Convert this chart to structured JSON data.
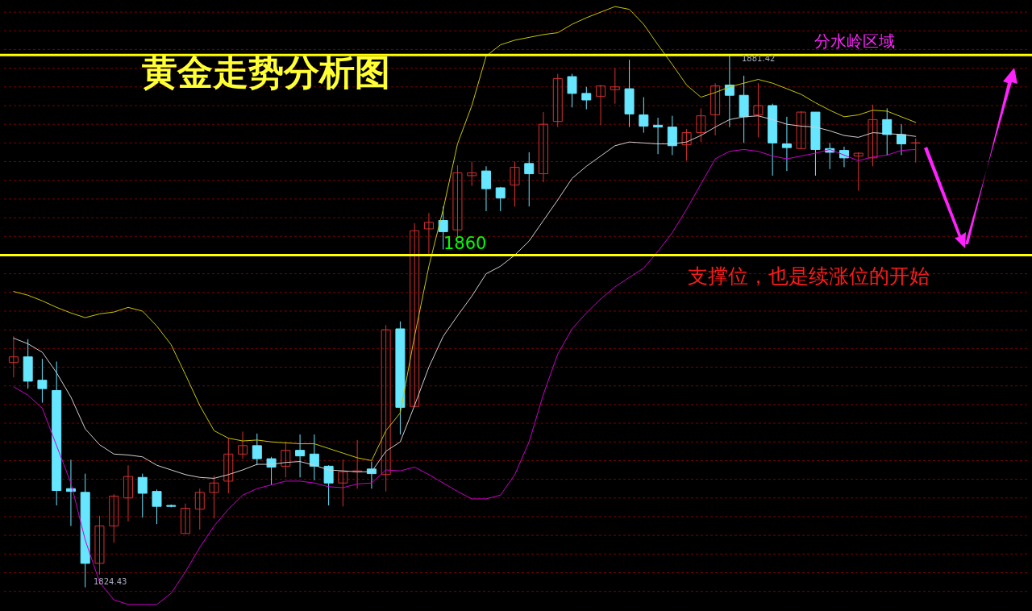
{
  "chart_data": {
    "type": "candlestick",
    "title": "黄金走势分析图",
    "categories": [
      null,
      null,
      null,
      null,
      null,
      null,
      null,
      null,
      null,
      null,
      null,
      null,
      null,
      null,
      null,
      null,
      null,
      null,
      null,
      null,
      null,
      null,
      null,
      null,
      null,
      null,
      null,
      null,
      null,
      null,
      null,
      null,
      null,
      null,
      null,
      null,
      null,
      null,
      null,
      null,
      null,
      null,
      null,
      null,
      null,
      null,
      null,
      null,
      null,
      null,
      null,
      null,
      null,
      null,
      null,
      null,
      null,
      null,
      null,
      null,
      null,
      null,
      null,
      null
    ],
    "ohlc": [
      [
        1848.5,
        1851.3,
        1846.9,
        1849.1
      ],
      [
        1849.1,
        1851.0,
        1845.7,
        1846.5
      ],
      [
        1846.6,
        1848.9,
        1844.2,
        1845.7
      ],
      [
        1845.5,
        1848.6,
        1833.2,
        1834.8
      ],
      [
        1835.0,
        1838.1,
        1831.0,
        1834.7
      ],
      [
        1834.6,
        1836.6,
        1824.43,
        1827.0
      ],
      [
        1827.0,
        1832.1,
        1825.8,
        1831.0
      ],
      [
        1831.0,
        1834.4,
        1829.2,
        1834.2
      ],
      [
        1834.0,
        1837.5,
        1831.5,
        1836.3
      ],
      [
        1836.2,
        1836.6,
        1831.9,
        1834.5
      ],
      [
        1834.7,
        1834.9,
        1831.2,
        1833.1
      ],
      [
        1833.2,
        1833.3,
        1833.0,
        1833.1
      ],
      [
        1830.2,
        1833.4,
        1830.2,
        1832.9
      ],
      [
        1832.8,
        1835.0,
        1830.6,
        1834.6
      ],
      [
        1834.6,
        1836.4,
        1831.8,
        1835.6
      ],
      [
        1835.8,
        1840.4,
        1834.5,
        1838.7
      ],
      [
        1838.7,
        1841.1,
        1838.2,
        1839.6
      ],
      [
        1839.6,
        1840.9,
        1837.5,
        1838.2
      ],
      [
        1838.2,
        1838.4,
        1835.4,
        1837.3
      ],
      [
        1837.4,
        1840.0,
        1836.2,
        1839.1
      ],
      [
        1839.1,
        1840.8,
        1836.2,
        1838.5
      ],
      [
        1838.7,
        1840.8,
        1835.9,
        1837.4
      ],
      [
        1837.4,
        1837.5,
        1833.2,
        1835.6
      ],
      [
        1835.6,
        1838.1,
        1833.1,
        1836.8
      ],
      [
        1836.8,
        1840.2,
        1835.0,
        1836.9
      ],
      [
        1837.1,
        1837.9,
        1835.0,
        1836.6
      ],
      [
        1836.5,
        1852.5,
        1834.7,
        1852.0
      ],
      [
        1852.1,
        1852.9,
        1840.8,
        1843.7
      ],
      [
        1843.8,
        1863.4,
        1843.8,
        1862.6
      ],
      [
        1862.8,
        1864.5,
        1860.1,
        1863.5
      ],
      [
        1863.7,
        1865.2,
        1860.6,
        1862.5
      ],
      [
        1862.7,
        1869.6,
        1861.9,
        1868.8
      ],
      [
        1868.5,
        1870.0,
        1867.4,
        1868.8
      ],
      [
        1869.0,
        1869.5,
        1864.7,
        1867.1
      ],
      [
        1867.2,
        1867.3,
        1864.7,
        1866.1
      ],
      [
        1867.5,
        1870.0,
        1865.2,
        1869.4
      ],
      [
        1869.8,
        1871.0,
        1865.2,
        1868.7
      ],
      [
        1868.7,
        1875.3,
        1867.8,
        1874.0
      ],
      [
        1874.3,
        1879.4,
        1873.7,
        1878.9
      ],
      [
        1879.1,
        1879.4,
        1875.8,
        1877.3
      ],
      [
        1877.3,
        1878.0,
        1875.6,
        1876.6
      ],
      [
        1877.0,
        1878.2,
        1873.9,
        1878.1
      ],
      [
        1877.7,
        1880.0,
        1876.2,
        1878.0
      ],
      [
        1877.8,
        1880.9,
        1873.7,
        1875.1
      ],
      [
        1875.0,
        1876.9,
        1873.1,
        1873.8
      ],
      [
        1873.9,
        1874.7,
        1870.8,
        1873.7
      ],
      [
        1873.7,
        1874.9,
        1870.7,
        1871.7
      ],
      [
        1871.8,
        1873.5,
        1870.1,
        1873.1
      ],
      [
        1873.1,
        1875.7,
        1872.1,
        1874.9
      ],
      [
        1875.0,
        1878.4,
        1872.8,
        1878.1
      ],
      [
        1878.2,
        1881.42,
        1873.7,
        1877.1
      ],
      [
        1877.1,
        1879.2,
        1872.0,
        1874.8
      ],
      [
        1875.0,
        1878.4,
        1872.6,
        1876.0
      ],
      [
        1876.0,
        1876.2,
        1868.5,
        1872.0
      ],
      [
        1871.9,
        1874.8,
        1869.0,
        1871.5
      ],
      [
        1871.4,
        1875.4,
        1871.4,
        1875.3
      ],
      [
        1875.3,
        1875.3,
        1868.5,
        1871.3
      ],
      [
        1871.4,
        1872.0,
        1869.2,
        1871.0
      ],
      [
        1871.2,
        1871.6,
        1869.4,
        1870.4
      ],
      [
        1870.6,
        1871.0,
        1866.9,
        1870.9
      ],
      [
        1870.4,
        1876.1,
        1869.5,
        1874.5
      ],
      [
        1874.5,
        1875.7,
        1870.7,
        1872.9
      ],
      [
        1872.9,
        1874.0,
        1870.7,
        1871.9
      ],
      [
        1872.0,
        1872.5,
        1869.9,
        1872.0
      ]
    ],
    "colors": [
      "#d83030",
      "#66e6ff",
      "#66e6ff",
      "#66e6ff",
      "#66e6ff",
      "#66e6ff",
      "#d83030",
      "#d83030",
      "#d83030",
      "#66e6ff",
      "#66e6ff",
      "#66e6ff",
      "#d83030",
      "#d83030",
      "#d83030",
      "#d83030",
      "#d83030",
      "#66e6ff",
      "#66e6ff",
      "#d83030",
      "#66e6ff",
      "#66e6ff",
      "#66e6ff",
      "#d83030",
      "#d83030",
      "#66e6ff",
      "#d83030",
      "#66e6ff",
      "#d83030",
      "#d83030",
      "#66e6ff",
      "#d83030",
      "#d83030",
      "#66e6ff",
      "#66e6ff",
      "#d83030",
      "#66e6ff",
      "#d83030",
      "#d83030",
      "#66e6ff",
      "#66e6ff",
      "#d83030",
      "#d83030",
      "#66e6ff",
      "#66e6ff",
      "#66e6ff",
      "#66e6ff",
      "#d83030",
      "#d83030",
      "#d83030",
      "#66e6ff",
      "#66e6ff",
      "#d83030",
      "#66e6ff",
      "#66e6ff",
      "#d83030",
      "#66e6ff",
      "#66e6ff",
      "#66e6ff",
      "#d83030",
      "#d83030",
      "#66e6ff",
      "#66e6ff",
      "#d83030"
    ],
    "series": [
      {
        "type": "line",
        "color": "#c8c800",
        "values": [
          1856.1,
          1855.7,
          1855.1,
          1854.4,
          1853.8,
          1853.3,
          1853.7,
          1853.9,
          1854.4,
          1854.0,
          1852.4,
          1850.4,
          1847.2,
          1843.9,
          1841.2,
          1840.4,
          1840.1,
          1840.2,
          1840.0,
          1839.9,
          1839.8,
          1839.8,
          1839.3,
          1838.8,
          1838.3,
          1838.0,
          1841.2,
          1843.1,
          1851.3,
          1858.8,
          1864.9,
          1871.9,
          1876.0,
          1881.3,
          1882.5,
          1883.0,
          1883.3,
          1883.6,
          1883.8,
          1884.7,
          1885.4,
          1886.0,
          1886.6,
          1886.3,
          1884.7,
          1882.5,
          1880.4,
          1878.2,
          1876.9,
          1877.4,
          1878.0,
          1878.4,
          1878.8,
          1878.4,
          1877.8,
          1877.2,
          1876.3,
          1875.5,
          1874.8,
          1875.0,
          1875.5,
          1875.4,
          1874.8,
          1874.2
        ]
      },
      {
        "type": "line",
        "color": "#d0d0d0",
        "values": [
          1851.1,
          1850.5,
          1849.6,
          1847.4,
          1844.8,
          1841.4,
          1839.7,
          1838.7,
          1838.6,
          1838.4,
          1837.5,
          1837.0,
          1836.5,
          1836.2,
          1836.1,
          1836.5,
          1837.0,
          1837.6,
          1837.6,
          1837.8,
          1837.9,
          1837.5,
          1837.0,
          1836.9,
          1836.8,
          1836.8,
          1839.0,
          1840.0,
          1843.9,
          1848.0,
          1851.3,
          1853.5,
          1855.6,
          1858.0,
          1858.8,
          1860.0,
          1861.5,
          1863.7,
          1865.9,
          1868.2,
          1869.5,
          1870.6,
          1871.7,
          1872.1,
          1872.0,
          1871.9,
          1871.9,
          1872.1,
          1872.8,
          1873.7,
          1874.5,
          1874.8,
          1874.9,
          1874.5,
          1874.0,
          1873.8,
          1873.7,
          1873.3,
          1872.8,
          1872.6,
          1873.1,
          1873.0,
          1872.9,
          1872.7
        ]
      },
      {
        "type": "line",
        "color": "#cc00cc",
        "values": [
          1845.9,
          1845.0,
          1843.6,
          1839.6,
          1835.6,
          1829.5,
          1825.0,
          1823.1,
          1822.6,
          1822.6,
          1822.6,
          1823.8,
          1826.1,
          1828.7,
          1831.0,
          1832.8,
          1834.3,
          1835.0,
          1835.4,
          1835.8,
          1835.8,
          1835.6,
          1835.2,
          1835.1,
          1835.5,
          1835.6,
          1837.0,
          1836.9,
          1837.3,
          1836.5,
          1835.6,
          1834.7,
          1833.9,
          1833.9,
          1834.3,
          1836.5,
          1840.0,
          1845.1,
          1849.4,
          1852.1,
          1853.8,
          1855.3,
          1856.6,
          1857.6,
          1858.6,
          1860.4,
          1862.4,
          1864.9,
          1867.6,
          1870.3,
          1871.1,
          1871.3,
          1871.1,
          1870.6,
          1870.3,
          1870.6,
          1870.9,
          1871.3,
          1870.7,
          1870.1,
          1870.5,
          1870.7,
          1871.2,
          1871.3
        ]
      }
    ],
    "ylim": [
      1821.9,
      1887.3
    ],
    "yticks": [
      {
        "value": 1824,
        "label": null
      },
      {
        "value": 1826,
        "label": null
      },
      {
        "value": 1828,
        "label": null
      },
      {
        "value": 1830,
        "label": null
      },
      {
        "value": 1832,
        "label": null
      },
      {
        "value": 1834,
        "label": null
      },
      {
        "value": 1836,
        "label": null
      },
      {
        "value": 1838,
        "label": null
      },
      {
        "value": 1840,
        "label": null
      },
      {
        "value": 1842,
        "label": null
      },
      {
        "value": 1844,
        "label": null
      },
      {
        "value": 1846,
        "label": null
      },
      {
        "value": 1848,
        "label": null
      },
      {
        "value": 1850,
        "label": null
      },
      {
        "value": 1852,
        "label": null
      },
      {
        "value": 1854,
        "label": null
      },
      {
        "value": 1856,
        "label": null
      },
      {
        "value": 1858,
        "label": null
      },
      {
        "value": 1860,
        "label": null
      },
      {
        "value": 1862,
        "label": null
      },
      {
        "value": 1864,
        "label": null
      },
      {
        "value": 1866,
        "label": null
      },
      {
        "value": 1868,
        "label": null
      },
      {
        "value": 1870,
        "label": null
      },
      {
        "value": 1872,
        "label": null
      },
      {
        "value": 1874,
        "label": null
      },
      {
        "value": 1876,
        "label": null
      },
      {
        "value": 1878,
        "label": null
      },
      {
        "value": 1880,
        "label": null
      },
      {
        "value": 1882,
        "label": null
      },
      {
        "value": 1884,
        "label": null
      },
      {
        "value": 1886,
        "label": null
      }
    ],
    "grid": "y",
    "ref_lines": [
      {
        "axis": "y",
        "value": 1860,
        "label": "1860",
        "color": "#ffff00"
      },
      {
        "axis": "y",
        "value": 1881.42,
        "label": "分水岭区域",
        "color": "#ffff00"
      }
    ],
    "annotations": [
      "1881.42",
      "1824.43",
      "支撑位，也是续涨位的开始"
    ]
  }
}
